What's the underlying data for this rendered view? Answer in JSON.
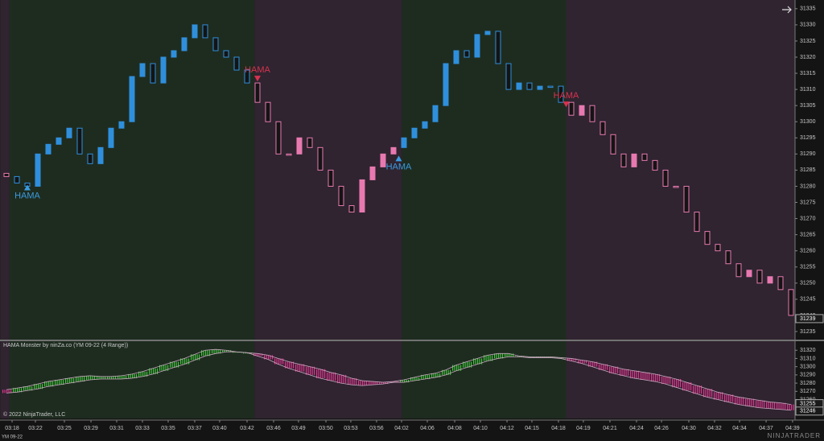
{
  "chart_data": [
    {
      "type": "candlestick",
      "ylim": [
        31232.5,
        31337.7
      ],
      "yticks": [
        31235,
        31240,
        31245,
        31250,
        31255,
        31260,
        31265,
        31270,
        31275,
        31280,
        31285,
        31290,
        31295,
        31300,
        31305,
        31310,
        31315,
        31320,
        31325,
        31330,
        31335
      ],
      "xticks": [
        {
          "value": 0.54,
          "label": "03:18"
        },
        {
          "value": 2.77,
          "label": "03:22"
        },
        {
          "value": 5.54,
          "label": "03:25"
        },
        {
          "value": 8.08,
          "label": "03:29"
        },
        {
          "value": 10.54,
          "label": "03:31"
        },
        {
          "value": 13,
          "label": "03:33"
        },
        {
          "value": 15.46,
          "label": "03:35"
        },
        {
          "value": 18,
          "label": "03:37"
        },
        {
          "value": 20.38,
          "label": "03:40"
        },
        {
          "value": 23,
          "label": "03:42"
        },
        {
          "value": 25.54,
          "label": "03:46"
        },
        {
          "value": 27.92,
          "label": "03:49"
        },
        {
          "value": 30.54,
          "label": "03:50"
        },
        {
          "value": 32.92,
          "label": "03:53"
        },
        {
          "value": 35.38,
          "label": "03:56"
        },
        {
          "value": 37.77,
          "label": "04:02"
        },
        {
          "value": 40.23,
          "label": "04:06"
        },
        {
          "value": 42.85,
          "label": "04:08"
        },
        {
          "value": 45.31,
          "label": "04:10"
        },
        {
          "value": 47.85,
          "label": "04:12"
        },
        {
          "value": 50.23,
          "label": "04:15"
        },
        {
          "value": 52.77,
          "label": "04:18"
        },
        {
          "value": 55.15,
          "label": "04:19"
        },
        {
          "value": 57.69,
          "label": "04:21"
        },
        {
          "value": 60.23,
          "label": "04:24"
        },
        {
          "value": 62.62,
          "label": "04:26"
        },
        {
          "value": 65.23,
          "label": "04:30"
        },
        {
          "value": 67.69,
          "label": "04:32"
        },
        {
          "value": 70.08,
          "label": "04:34"
        },
        {
          "value": 72.62,
          "label": "04:37"
        },
        {
          "value": 75.15,
          "label": "04:39"
        }
      ],
      "regions": [
        {
          "start": -0.6,
          "end": 0.3,
          "bg": "#2f2430",
          "candle": "#e879b0",
          "ribbon": "#e0358f"
        },
        {
          "start": 0.3,
          "end": 23.7,
          "bg": "#1e2c20",
          "candle": "#2f8fdc",
          "ribbon": "#3fc43a"
        },
        {
          "start": 23.7,
          "end": 37.8,
          "bg": "#2f2430",
          "candle": "#e879b0",
          "ribbon": "#e0358f"
        },
        {
          "start": 37.8,
          "end": 53.5,
          "bg": "#1e2c20",
          "candle": "#2f8fdc",
          "ribbon": "#3fc43a"
        },
        {
          "start": 53.5,
          "end": 75.6,
          "bg": "#2f2430",
          "candle": "#e879b0",
          "ribbon": "#e0358f"
        }
      ],
      "open": [
        31284,
        31283,
        31281,
        31280,
        31290,
        31293,
        31295,
        31298,
        31290,
        31287,
        31292,
        31298,
        31300,
        31314,
        31318,
        31312,
        31320,
        31322,
        31326,
        31330,
        31326,
        31322,
        31320,
        31316,
        31312,
        31306,
        31300,
        31290,
        31290,
        31295,
        31292,
        31285,
        31280,
        31274,
        31272,
        31282,
        31286,
        31290,
        31292,
        31295,
        31298,
        31300,
        31305,
        31318,
        31322,
        31320,
        31327,
        31328,
        31318,
        31310,
        31312,
        31310,
        31311,
        31311,
        31306,
        31302,
        31305,
        31300,
        31296,
        31290,
        31286,
        31290,
        31288,
        31285,
        31280,
        31280,
        31272,
        31266,
        31262,
        31260,
        31256,
        31252,
        31254,
        31250,
        31252,
        31248
      ],
      "close": [
        31283,
        31281,
        31280,
        31290,
        31293,
        31295,
        31298,
        31290,
        31287,
        31292,
        31298,
        31300,
        31314,
        31318,
        31312,
        31320,
        31322,
        31326,
        31330,
        31326,
        31322,
        31320,
        31316,
        31312,
        31306,
        31300,
        31290,
        31290,
        31295,
        31292,
        31285,
        31280,
        31274,
        31272,
        31282,
        31286,
        31290,
        31292,
        31295,
        31298,
        31300,
        31305,
        31318,
        31322,
        31320,
        31327,
        31328,
        31318,
        31310,
        31312,
        31310,
        31311,
        31311,
        31306,
        31302,
        31305,
        31300,
        31296,
        31290,
        31286,
        31290,
        31288,
        31285,
        31280,
        31280,
        31272,
        31266,
        31262,
        31260,
        31256,
        31252,
        31254,
        31250,
        31252,
        31248,
        31240
      ],
      "annotations": [
        {
          "text": "HAMA",
          "index": 2,
          "price": 31281,
          "dir": "up",
          "color": "#3b9be0"
        },
        {
          "text": "HAMA",
          "index": 24,
          "price": 31312,
          "dir": "down",
          "color": "#d8324f"
        },
        {
          "text": "HAMA",
          "index": 37.5,
          "price": 31290,
          "dir": "up",
          "color": "#3b9be0"
        },
        {
          "text": "HAMA",
          "index": 53.5,
          "price": 31304,
          "dir": "down",
          "color": "#d8324f"
        }
      ],
      "price_marker": 31239
    },
    {
      "type": "ribbon",
      "title": "HAMA Monster by ninZa.co (YM 09-22 (4 Range))",
      "ylim": [
        31237,
        31331
      ],
      "yticks": [
        31250,
        31260,
        31270,
        31280,
        31290,
        31300,
        31310,
        31320
      ],
      "upper": [
        31272,
        31274,
        31276,
        31279,
        31282,
        31284,
        31286,
        31288,
        31289,
        31288,
        31288,
        31289,
        31291,
        31294,
        31298,
        31302,
        31306,
        31310,
        31315,
        31320,
        31321,
        31320,
        31318,
        31317,
        31316,
        31314,
        31310,
        31306,
        31303,
        31300,
        31297,
        31293,
        31290,
        31286,
        31283,
        31282,
        31281,
        31282,
        31284,
        31287,
        31290,
        31292,
        31296,
        31302,
        31306,
        31310,
        31314,
        31316,
        31316,
        31313,
        31312,
        31312,
        31312,
        31311,
        31310,
        31308,
        31306,
        31303,
        31300,
        31297,
        31295,
        31293,
        31291,
        31288,
        31285,
        31281,
        31277,
        31273,
        31269,
        31266,
        31263,
        31261,
        31259,
        31257,
        31256,
        31254
      ],
      "lower": [
        31268,
        31269,
        31271,
        31273,
        31276,
        31278,
        31280,
        31282,
        31284,
        31285,
        31285,
        31285,
        31286,
        31288,
        31291,
        31295,
        31299,
        31303,
        31308,
        31313,
        31316,
        31318,
        31318,
        31317,
        31313,
        31309,
        31303,
        31298,
        31294,
        31290,
        31286,
        31283,
        31280,
        31278,
        31277,
        31278,
        31279,
        31281,
        31281,
        31283,
        31285,
        31287,
        31290,
        31295,
        31299,
        31303,
        31307,
        31310,
        31312,
        31312,
        31311,
        31311,
        31311,
        31310,
        31307,
        31304,
        31300,
        31296,
        31292,
        31289,
        31286,
        31284,
        31282,
        31279,
        31275,
        31271,
        31267,
        31263,
        31260,
        31257,
        31254,
        31252,
        31250,
        31249,
        31248,
        31247
      ],
      "price_markers": [
        31255,
        31246
      ]
    }
  ],
  "copyright": "© 2022 NinjaTrader, LLC",
  "instrument": "YM 09-22",
  "logo": "NINJATRADER"
}
